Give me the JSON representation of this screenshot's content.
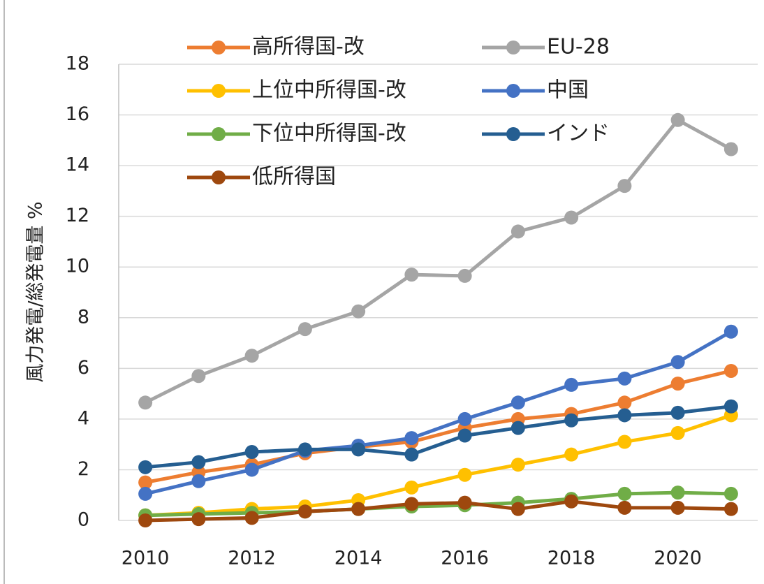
{
  "chart_data": {
    "type": "line",
    "y_label": "風力発電/総発電量 %",
    "x": [
      2010,
      2011,
      2012,
      2013,
      2014,
      2015,
      2016,
      2017,
      2018,
      2019,
      2020,
      2021
    ],
    "xlim": [
      2009.5,
      2021.5
    ],
    "xticks": [
      2010,
      2012,
      2014,
      2016,
      2018,
      2020
    ],
    "ylim": [
      0,
      18
    ],
    "yticks": [
      0,
      2,
      4,
      6,
      8,
      10,
      12,
      14,
      16,
      18
    ],
    "grid": true,
    "series": [
      {
        "name": "高所得国-改",
        "color": "#ed7d31",
        "values": [
          1.5,
          1.9,
          2.2,
          2.65,
          2.9,
          3.1,
          3.65,
          4.0,
          4.2,
          4.65,
          5.4,
          5.9
        ]
      },
      {
        "name": "EU-28",
        "color": "#a5a5a5",
        "values": [
          4.65,
          5.7,
          6.5,
          7.55,
          8.25,
          9.7,
          9.65,
          11.4,
          11.95,
          13.2,
          15.8,
          14.65
        ]
      },
      {
        "name": "上位中所得国-改",
        "color": "#ffc000",
        "values": [
          0.2,
          0.3,
          0.45,
          0.55,
          0.8,
          1.3,
          1.8,
          2.2,
          2.6,
          3.1,
          3.45,
          4.15
        ]
      },
      {
        "name": "中国",
        "color": "#4472c4",
        "values": [
          1.05,
          1.55,
          2.0,
          2.75,
          2.95,
          3.25,
          4.0,
          4.65,
          5.35,
          5.6,
          6.25,
          7.45
        ]
      },
      {
        "name": "下位中所得国-改",
        "color": "#70ad47",
        "values": [
          0.2,
          0.25,
          0.3,
          0.35,
          0.45,
          0.55,
          0.6,
          0.7,
          0.85,
          1.05,
          1.1,
          1.05
        ]
      },
      {
        "name": "インド",
        "color": "#255e91",
        "values": [
          2.1,
          2.3,
          2.7,
          2.8,
          2.8,
          2.6,
          3.35,
          3.65,
          3.95,
          4.15,
          4.25,
          4.5
        ]
      },
      {
        "name": "低所得国",
        "color": "#9e480e",
        "values": [
          0.0,
          0.05,
          0.1,
          0.35,
          0.45,
          0.65,
          0.7,
          0.45,
          0.75,
          0.5,
          0.5,
          0.45
        ]
      }
    ]
  }
}
